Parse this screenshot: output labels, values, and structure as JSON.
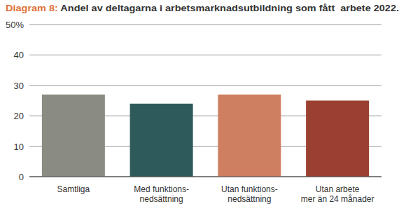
{
  "chart_data": {
    "type": "bar",
    "title": "Diagram 8: Andel av deltagarna i arbetsmarknadsutbildning som fått  arbete 2022.",
    "categories": [
      "Samtliga",
      "Med funktions-\nnedsättning",
      "Utan funktions-\nnedsättning",
      "Utan arbete\nmer än 24 månader"
    ],
    "values": [
      27,
      24,
      27,
      25
    ],
    "colors": [
      "#8a8c84",
      "#2f5a5b",
      "#cf7f61",
      "#9b3f31"
    ],
    "ylim": [
      0,
      50
    ],
    "yticks": [
      0,
      10,
      20,
      30,
      40,
      {
        "value": 50,
        "label": "50%"
      }
    ],
    "grid": true
  }
}
